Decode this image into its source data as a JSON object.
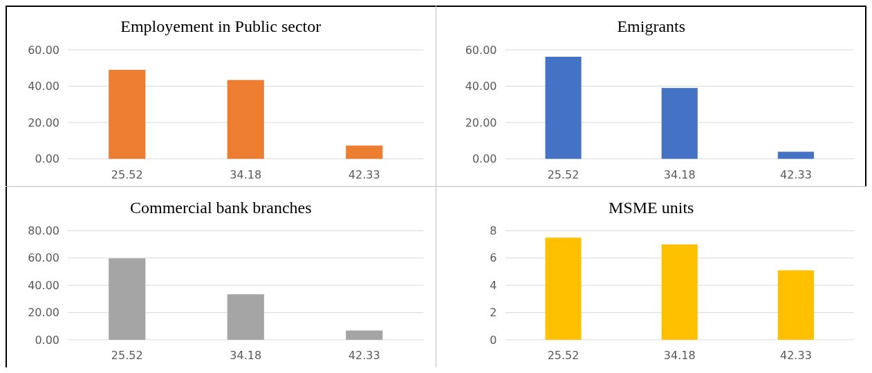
{
  "chart_data": [
    {
      "type": "bar",
      "title": "Employement in Public sector",
      "categories": [
        "25.52",
        "34.18",
        "42.33"
      ],
      "values": [
        49.0,
        43.4,
        7.3
      ],
      "color": "#ed7d31",
      "ylim": [
        0,
        60
      ],
      "yticks": [
        {
          "value": 0,
          "label": "0.00"
        },
        {
          "value": 20,
          "label": "20.00"
        },
        {
          "value": 40,
          "label": "40.00"
        },
        {
          "value": 60,
          "label": "60.00"
        }
      ],
      "grid": "y"
    },
    {
      "type": "bar",
      "title": "Emigrants",
      "categories": [
        "25.52",
        "34.18",
        "42.33"
      ],
      "values": [
        56.2,
        39.0,
        3.9
      ],
      "color": "#4472c4",
      "ylim": [
        0,
        60
      ],
      "yticks": [
        {
          "value": 0,
          "label": "0.00"
        },
        {
          "value": 20,
          "label": "20.00"
        },
        {
          "value": 40,
          "label": "40.00"
        },
        {
          "value": 60,
          "label": "60.00"
        }
      ],
      "grid": "y"
    },
    {
      "type": "bar",
      "title": "Commercial bank branches",
      "categories": [
        "25.52",
        "34.18",
        "42.33"
      ],
      "values": [
        59.8,
        33.4,
        6.8
      ],
      "color": "#a5a5a5",
      "ylim": [
        0,
        80
      ],
      "yticks": [
        {
          "value": 0,
          "label": "0.00"
        },
        {
          "value": 20,
          "label": "20.00"
        },
        {
          "value": 40,
          "label": "40.00"
        },
        {
          "value": 60,
          "label": "60.00"
        },
        {
          "value": 80,
          "label": "80.00"
        }
      ],
      "grid": "y"
    },
    {
      "type": "bar",
      "title": "MSME units",
      "categories": [
        "25.52",
        "34.18",
        "42.33"
      ],
      "values": [
        7.5,
        7.0,
        5.1
      ],
      "color": "#ffc000",
      "ylim": [
        0,
        8
      ],
      "yticks": [
        0,
        2,
        4,
        6,
        8
      ],
      "grid": "y"
    }
  ]
}
